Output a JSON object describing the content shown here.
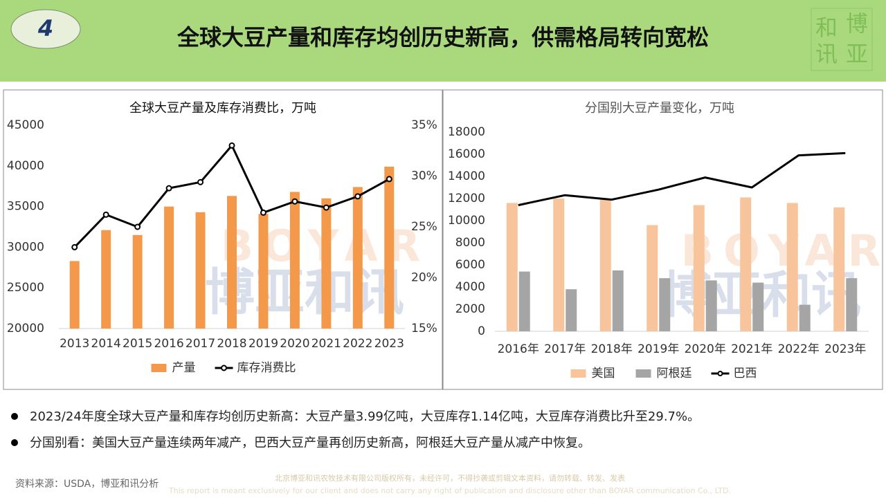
{
  "header": {
    "number": "4",
    "title": "全球大豆产量和库存均创历史新高，供需格局转向宽松"
  },
  "logo": [
    "和",
    "博",
    "讯",
    "亚"
  ],
  "watermark": {
    "latin": "BOYAR",
    "chinese": "博亚和讯"
  },
  "chart_data": [
    {
      "type": "bar",
      "title": "全球大豆产量及库存消费比，万吨",
      "categories": [
        "2013",
        "2014",
        "2015",
        "2016",
        "2017",
        "2018",
        "2019",
        "2020",
        "2021",
        "2022",
        "2023"
      ],
      "series": [
        {
          "name": "产量",
          "color": "#f4994a",
          "values": [
            28300,
            32100,
            31500,
            35000,
            34300,
            36300,
            34100,
            36800,
            36000,
            37400,
            39900
          ]
        },
        {
          "name": "库存消费比",
          "color": "#000000",
          "type": "line",
          "markers": true,
          "axis": "y2",
          "values": [
            23.0,
            26.2,
            25.0,
            28.8,
            29.4,
            33.0,
            26.4,
            27.5,
            26.9,
            28.0,
            29.7
          ]
        }
      ],
      "ylim": [
        20000,
        45000
      ],
      "yticks": [
        20000,
        25000,
        30000,
        35000,
        40000,
        45000
      ],
      "y2lim": [
        15,
        35
      ],
      "y2ticks": [
        {
          "value": 15,
          "label": "15%"
        },
        {
          "value": 20,
          "label": "20%"
        },
        {
          "value": 25,
          "label": "25%"
        },
        {
          "value": 30,
          "label": "30%"
        },
        {
          "value": 35,
          "label": "35%"
        }
      ],
      "grid": false,
      "legend": "bottom"
    },
    {
      "type": "bar",
      "title": "分国别大豆产量变化，万吨",
      "categories": [
        "2016年",
        "2017年",
        "2018年",
        "2019年",
        "2020年",
        "2021年",
        "2022年",
        "2023年"
      ],
      "series": [
        {
          "name": "美国",
          "color": "#f8c49c",
          "values": [
            11600,
            12000,
            11900,
            9600,
            11400,
            12100,
            11600,
            11200
          ]
        },
        {
          "name": "阿根廷",
          "color": "#a5a5a5",
          "values": [
            5400,
            3800,
            5500,
            4800,
            4600,
            4400,
            2400,
            4800
          ]
        },
        {
          "name": "巴西",
          "color": "#000000",
          "type": "line",
          "markers": false,
          "values": [
            11400,
            12300,
            11900,
            12800,
            13900,
            13000,
            15900,
            16100
          ]
        }
      ],
      "ylim": [
        0,
        18000
      ],
      "yticks": [
        0,
        2000,
        4000,
        6000,
        8000,
        10000,
        12000,
        14000,
        16000,
        18000
      ],
      "grid": false,
      "legend": "bottom"
    }
  ],
  "bullets": [
    "2023/24年度全球大豆产量和库存均创历史新高：大豆产量3.99亿吨，大豆库存1.14亿吨，大豆库存消费比升至29.7%。",
    "分国别看：美国大豆产量连续两年减产，巴西大豆产量再创历史新高，阿根廷大豆产量从减产中恢复。"
  ],
  "source": "资料来源：USDA，博亚和讯分析",
  "footer": [
    "北京博亚和讯农牧技术有限公司版权所有，未经许可，不得抄袭或剪辑文本资料，请勿转载、转发、发表",
    "This report is meant exclusively for our client and does not carry any right of publication and disclosure other than BOYAR communication Co., LTD."
  ]
}
